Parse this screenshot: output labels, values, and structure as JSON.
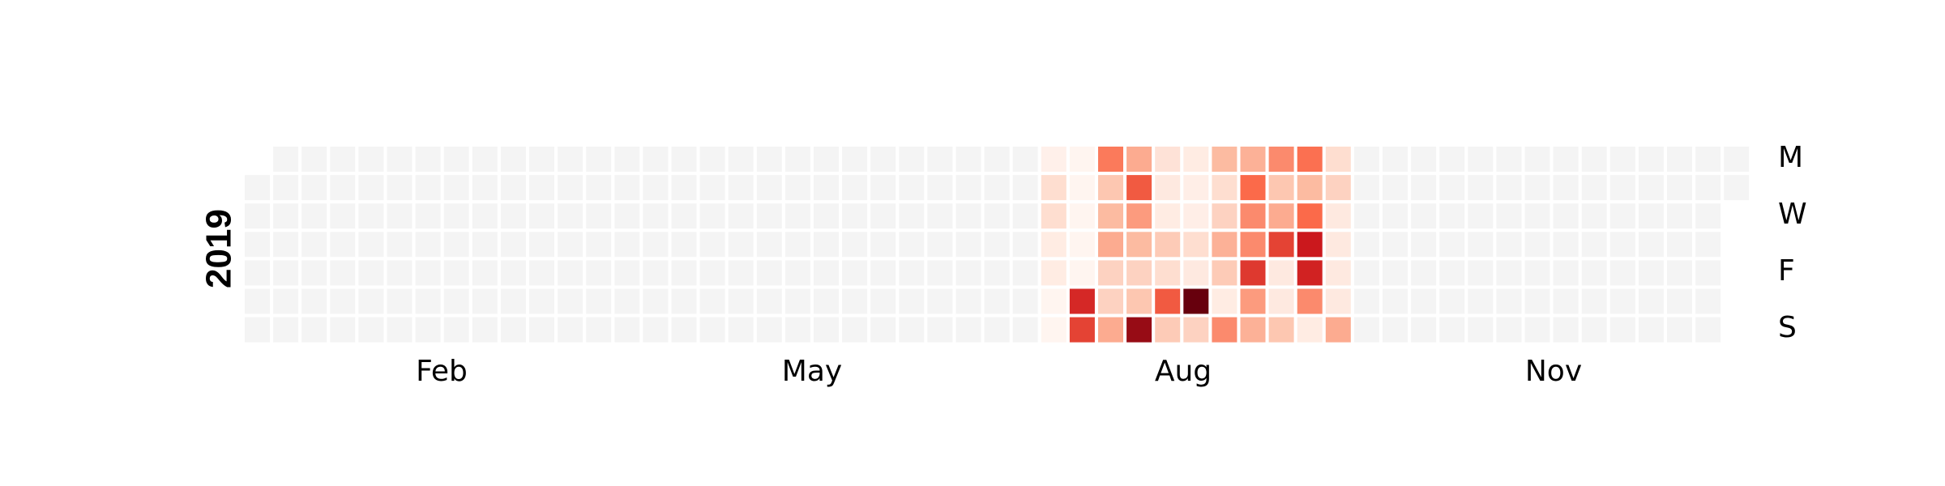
{
  "chart_data": {
    "type": "heatmap",
    "year_label": "2019",
    "day_labels": [
      "M",
      "W",
      "F",
      "S"
    ],
    "month_labels": [
      "Feb",
      "May",
      "Aug",
      "Nov"
    ],
    "year_start_weekday": "Tue",
    "empty_color": "#f4f4f4",
    "color_scale": [
      "#fff5f0",
      "#fcbba1",
      "#fb6a4a",
      "#cb181d",
      "#67000d"
    ],
    "value_range": [
      0,
      1
    ],
    "active_weeks": [
      [
        0.02,
        0.1,
        0.1,
        0.04,
        0.04,
        0.0,
        0.0
      ],
      [
        0.0,
        0.0,
        0.0,
        0.0,
        0.0,
        0.7,
        0.62
      ],
      [
        0.45,
        0.2,
        0.25,
        0.3,
        0.15,
        0.15,
        0.3
      ],
      [
        0.3,
        0.55,
        0.35,
        0.25,
        0.15,
        0.2,
        0.88
      ],
      [
        0.08,
        0.05,
        0.04,
        0.18,
        0.1,
        0.55,
        0.18
      ],
      [
        0.04,
        0.03,
        0.03,
        0.1,
        0.05,
        1.0,
        0.15
      ],
      [
        0.25,
        0.1,
        0.15,
        0.28,
        0.18,
        0.04,
        0.4
      ],
      [
        0.28,
        0.5,
        0.4,
        0.4,
        0.65,
        0.35,
        0.28
      ],
      [
        0.4,
        0.2,
        0.3,
        0.62,
        0.05,
        0.05,
        0.2
      ],
      [
        0.48,
        0.25,
        0.5,
        0.75,
        0.72,
        0.4,
        0.04
      ],
      [
        0.1,
        0.15,
        0.05,
        0.05,
        0.05,
        0.05,
        0.3
      ]
    ]
  }
}
